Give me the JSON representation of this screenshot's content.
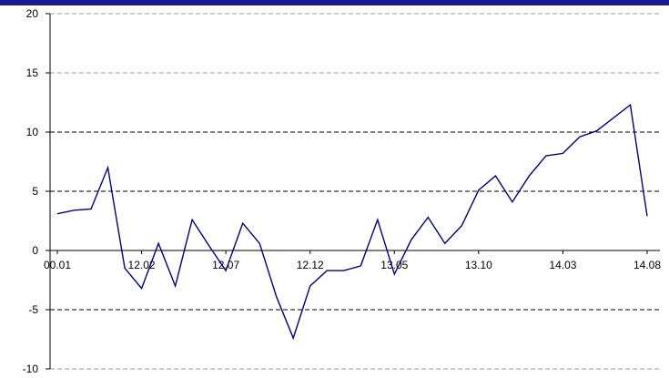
{
  "theme": {
    "top_bar_color": "#1a1a8c",
    "line_color": "#000080",
    "axis_color": "#000000"
  },
  "chart_data": {
    "type": "line",
    "title": "",
    "xlabel": "",
    "ylabel": "",
    "ylim": [
      -10,
      20
    ],
    "y_ticks": [
      "20",
      "15",
      "10",
      "5",
      "0",
      "-5",
      "-10"
    ],
    "y_tick_values": [
      20,
      15,
      10,
      5,
      0,
      -5,
      -10
    ],
    "grid": "horizontal dashed lines",
    "x_tick_labels": [
      "00.01",
      "12.02",
      "12.07",
      "12.12",
      "13.05",
      "13.10",
      "14.03",
      "14.08"
    ],
    "series": [
      {
        "values": [
          3.1,
          3.4,
          3.5,
          7.0,
          -1.5,
          -3.2,
          0.6,
          -3.0,
          2.6,
          0.4,
          -1.7,
          2.3,
          0.6,
          -3.9,
          -7.4,
          -3.0,
          -1.7,
          -1.7,
          -1.3,
          2.6,
          -2.0,
          0.9,
          2.8,
          0.6,
          2.1,
          5.1,
          6.3,
          4.1,
          6.3,
          8.0,
          8.2,
          9.6,
          10.1,
          11.2,
          12.3,
          2.9
        ]
      }
    ]
  }
}
